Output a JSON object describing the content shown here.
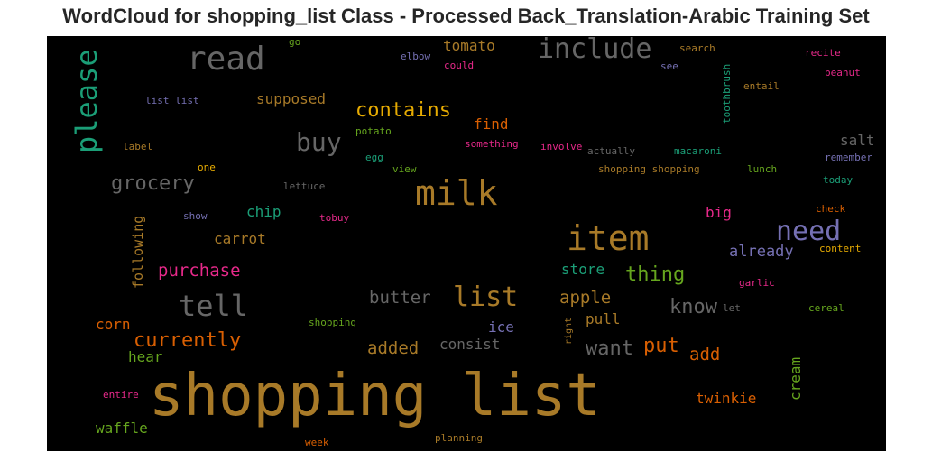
{
  "title": "WordCloud for shopping_list Class - Processed Back_Translation-Arabic Training Set",
  "words": [
    {
      "text": "shopping list",
      "color": "#a87a28"
    },
    {
      "text": "item",
      "color": "#a87a28"
    },
    {
      "text": "milk",
      "color": "#a87a28"
    },
    {
      "text": "read",
      "color": "#666666"
    },
    {
      "text": "include",
      "color": "#666666"
    },
    {
      "text": "please",
      "color": "#1b9e77"
    },
    {
      "text": "need",
      "color": "#7570b3"
    },
    {
      "text": "list",
      "color": "#a87a28"
    },
    {
      "text": "tell",
      "color": "#666666"
    },
    {
      "text": "buy",
      "color": "#666666"
    },
    {
      "text": "contains",
      "color": "#e6ab02"
    },
    {
      "text": "grocery",
      "color": "#666666"
    },
    {
      "text": "thing",
      "color": "#66a61e"
    },
    {
      "text": "know",
      "color": "#666666"
    },
    {
      "text": "currently",
      "color": "#d95f02"
    },
    {
      "text": "purchase",
      "color": "#e7298a"
    },
    {
      "text": "apple",
      "color": "#a87a28"
    },
    {
      "text": "want",
      "color": "#666666"
    },
    {
      "text": "put",
      "color": "#d95f02"
    },
    {
      "text": "butter",
      "color": "#666666"
    },
    {
      "text": "added",
      "color": "#a87a28"
    },
    {
      "text": "consist",
      "color": "#666666"
    },
    {
      "text": "already",
      "color": "#7570b3"
    },
    {
      "text": "supposed",
      "color": "#a87a28"
    },
    {
      "text": "tomato",
      "color": "#a87a28"
    },
    {
      "text": "find",
      "color": "#d95f02"
    },
    {
      "text": "salt",
      "color": "#666666"
    },
    {
      "text": "chip",
      "color": "#1b9e77"
    },
    {
      "text": "carrot",
      "color": "#a87a28"
    },
    {
      "text": "big",
      "color": "#e7298a"
    },
    {
      "text": "store",
      "color": "#1b9e77"
    },
    {
      "text": "pull",
      "color": "#a87a28"
    },
    {
      "text": "add",
      "color": "#d95f02"
    },
    {
      "text": "corn",
      "color": "#d95f02"
    },
    {
      "text": "hear",
      "color": "#66a61e"
    },
    {
      "text": "ice",
      "color": "#7570b3"
    },
    {
      "text": "twinkie",
      "color": "#d95f02"
    },
    {
      "text": "waffle",
      "color": "#66a61e"
    },
    {
      "text": "following",
      "color": "#a87a28"
    },
    {
      "text": "cream",
      "color": "#66a61e"
    },
    {
      "text": "toothbrush",
      "color": "#1b9e77"
    },
    {
      "text": "go",
      "color": "#66a61e"
    },
    {
      "text": "elbow",
      "color": "#7570b3"
    },
    {
      "text": "could",
      "color": "#e7298a"
    },
    {
      "text": "search",
      "color": "#a87a28"
    },
    {
      "text": "recite",
      "color": "#e7298a"
    },
    {
      "text": "see",
      "color": "#7570b3"
    },
    {
      "text": "peanut",
      "color": "#e7298a"
    },
    {
      "text": "entail",
      "color": "#a87a28"
    },
    {
      "text": "list list",
      "color": "#7570b3"
    },
    {
      "text": "potato",
      "color": "#66a61e"
    },
    {
      "text": "something",
      "color": "#e7298a"
    },
    {
      "text": "label",
      "color": "#a87a28"
    },
    {
      "text": "involve",
      "color": "#e7298a"
    },
    {
      "text": "actually",
      "color": "#666666"
    },
    {
      "text": "macaroni",
      "color": "#1b9e77"
    },
    {
      "text": "remember",
      "color": "#7570b3"
    },
    {
      "text": "egg",
      "color": "#1b9e77"
    },
    {
      "text": "one",
      "color": "#e6ab02"
    },
    {
      "text": "view",
      "color": "#66a61e"
    },
    {
      "text": "shopping shopping",
      "color": "#a87a28"
    },
    {
      "text": "lunch",
      "color": "#66a61e"
    },
    {
      "text": "today",
      "color": "#1b9e77"
    },
    {
      "text": "lettuce",
      "color": "#666666"
    },
    {
      "text": "check",
      "color": "#d95f02"
    },
    {
      "text": "show",
      "color": "#7570b3"
    },
    {
      "text": "tobuy",
      "color": "#e7298a"
    },
    {
      "text": "content",
      "color": "#e6ab02"
    },
    {
      "text": "garlic",
      "color": "#e7298a"
    },
    {
      "text": "let",
      "color": "#666666"
    },
    {
      "text": "cereal",
      "color": "#66a61e"
    },
    {
      "text": "shopping",
      "color": "#66a61e"
    },
    {
      "text": "right",
      "color": "#a87a28"
    },
    {
      "text": "entire",
      "color": "#e7298a"
    },
    {
      "text": "week",
      "color": "#d95f02"
    },
    {
      "text": "planning",
      "color": "#a87a28"
    }
  ]
}
